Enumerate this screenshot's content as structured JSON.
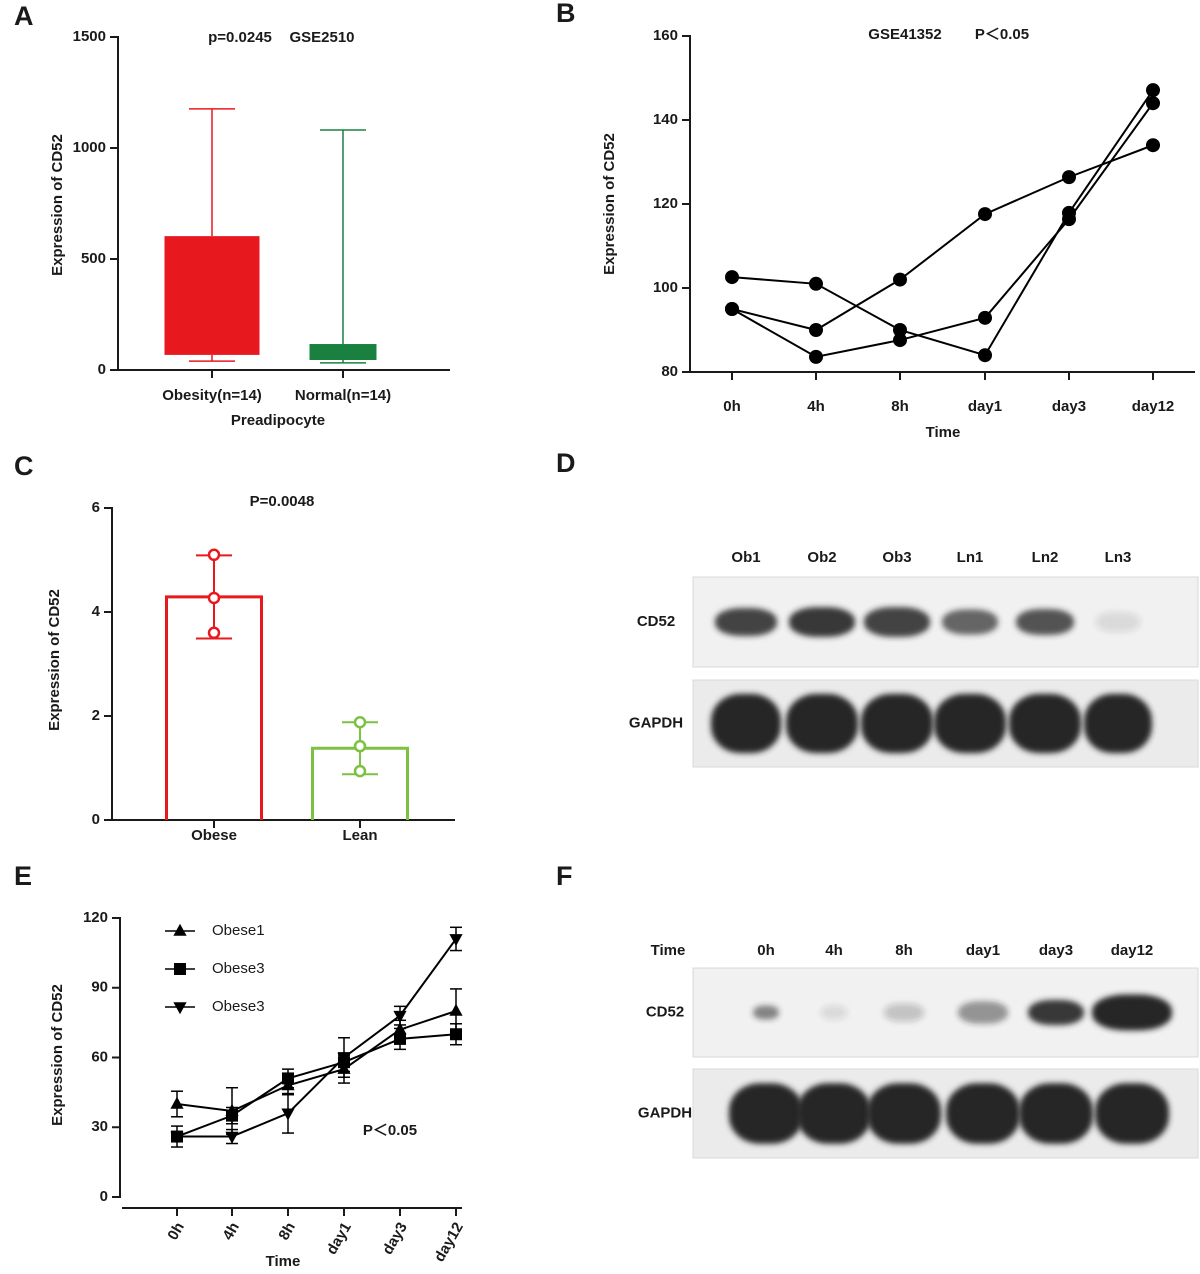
{
  "chart_data": [
    {
      "label": "A",
      "type": "box",
      "title": "p=0.0245",
      "subtitle": "GSE2510",
      "ylabel": "Expression of CD52",
      "xlabel": "Preadipocyte",
      "categories": [
        "Obesity(n=14)",
        "Normal(n=14)"
      ],
      "boxes": [
        {
          "min": 40,
          "q1": 68,
          "q3": 603,
          "max": 1176,
          "color": "#e8191e"
        },
        {
          "min": 32,
          "q1": 45,
          "q3": 117,
          "max": 1081,
          "color": "#1a8040"
        }
      ],
      "ylim": [
        0,
        1500
      ],
      "yticks": [
        0,
        500,
        1000,
        1500
      ]
    },
    {
      "label": "B",
      "type": "line",
      "title": "GSE41352",
      "subtitle": "P＜0.05",
      "xlabel": "Time",
      "ylabel": "Expression of CD52",
      "categories": [
        "0h",
        "4h",
        "8h",
        "day1",
        "day3",
        "day12"
      ],
      "series": [
        {
          "color": "#000000",
          "values": [
            102.6,
            101,
            90,
            84,
            117.9,
            147.1
          ]
        },
        {
          "color": "#000000",
          "values": [
            95,
            83.6,
            87.6,
            92.9,
            116.4,
            144
          ]
        },
        {
          "color": "#000000",
          "values": [
            95,
            90,
            102,
            117.6,
            126.4,
            134
          ]
        }
      ],
      "ylim": [
        80,
        160
      ],
      "yticks": [
        80,
        100,
        120,
        140,
        160
      ]
    },
    {
      "label": "C",
      "type": "bar",
      "title": "P=0.0048",
      "ylabel": "Expression of CD52",
      "categories": [
        "Obese",
        "Lean"
      ],
      "values": [
        4.29,
        1.38
      ],
      "errors": [
        0.8,
        0.5
      ],
      "points": [
        [
          5.1,
          4.27,
          3.6
        ],
        [
          1.88,
          1.42,
          0.94
        ]
      ],
      "colors": [
        "#e8191e",
        "#7cc242"
      ],
      "ylim": [
        0,
        6
      ],
      "yticks": [
        0,
        2,
        4,
        6
      ]
    },
    {
      "label": "D",
      "type": "blot",
      "lanes": [
        "Ob1",
        "Ob2",
        "Ob3",
        "Ln1",
        "Ln2",
        "Ln3"
      ],
      "rows": [
        "CD52",
        "GAPDH"
      ]
    },
    {
      "label": "E",
      "type": "line",
      "annotation": "P＜0.05",
      "xlabel": "Time",
      "ylabel": "Expression of CD52",
      "categories": [
        "0h",
        "4h",
        "8h",
        "day1",
        "day3",
        "day12"
      ],
      "series": [
        {
          "name": "Obese1",
          "marker": "triangle-up",
          "color": "#000000",
          "values": [
            40,
            37,
            48,
            55,
            72,
            80
          ],
          "errors": [
            5.5,
            10,
            4,
            6,
            4,
            9.5
          ]
        },
        {
          "name": "Obese3",
          "marker": "square",
          "color": "#000000",
          "values": [
            26,
            35,
            51,
            58,
            68,
            70
          ],
          "errors": [
            4.5,
            3.5,
            4,
            4,
            4.5,
            4.5
          ]
        },
        {
          "name": "Obese3",
          "marker": "triangle-down",
          "color": "#000000",
          "values": [
            26,
            26,
            36,
            60,
            78,
            111
          ],
          "errors": [
            2,
            3,
            8.5,
            8.5,
            4,
            5
          ]
        }
      ],
      "ylim": [
        0,
        120
      ],
      "yticks": [
        0,
        30,
        60,
        90,
        120
      ],
      "legend": "upper left"
    },
    {
      "label": "F",
      "type": "blot",
      "header": "Time",
      "lanes": [
        "0h",
        "4h",
        "8h",
        "day1",
        "day3",
        "day12"
      ],
      "rows": [
        "CD52",
        "GAPDH"
      ]
    }
  ]
}
